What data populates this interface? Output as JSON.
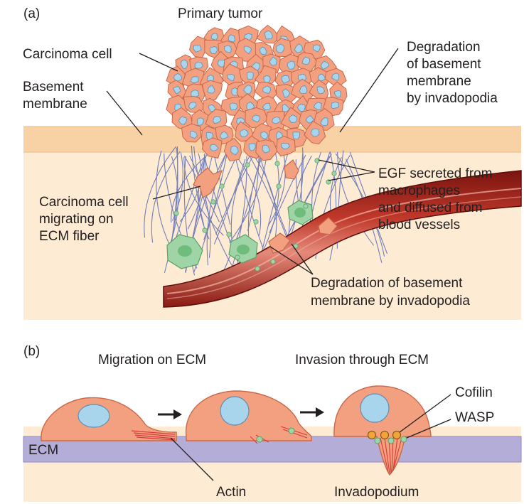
{
  "panel_a": {
    "letter": "(a)",
    "labels": {
      "primary_tumor": "Primary tumor",
      "carcinoma_cell": "Carcinoma cell",
      "basement_membrane_1": "Basement",
      "basement_membrane_2": "membrane",
      "degradation_top_1": "Degradation",
      "degradation_top_2": "of basement",
      "degradation_top_3": "membrane",
      "degradation_top_4": "by invadopodia",
      "migrating_1": "Carcinoma cell",
      "migrating_2": "migrating on",
      "migrating_3": "ECM fiber",
      "egf_1": "EGF secreted from",
      "egf_2": "macrophages",
      "egf_3": "and diffused from",
      "egf_4": "blood vessels",
      "degradation_bottom_1": "Degradation of basement",
      "degradation_bottom_2": "membrane by invadopodia"
    }
  },
  "panel_b": {
    "letter": "(b)",
    "labels": {
      "migration": "Migration on ECM",
      "invasion": "Invasion through ECM",
      "cofilin": "Cofilin",
      "wasp": "WASP",
      "ecm": "ECM",
      "actin": "Actin",
      "invadopodium": "Invadopodium"
    }
  },
  "colors": {
    "tissue": "#fdebd3",
    "basement_membrane": "#f8d1a4",
    "cell_fill": "#f2a07f",
    "cell_stroke": "#c9694a",
    "nucleus": "#a9d5ec",
    "macrophage": "#9fd4a6",
    "ecm_fiber": "#5b6bb5",
    "ecm_band": "#b4add8",
    "vessel": "#9c1f17",
    "actin": "#d83a3a",
    "cofilin": "#f0a43a"
  }
}
